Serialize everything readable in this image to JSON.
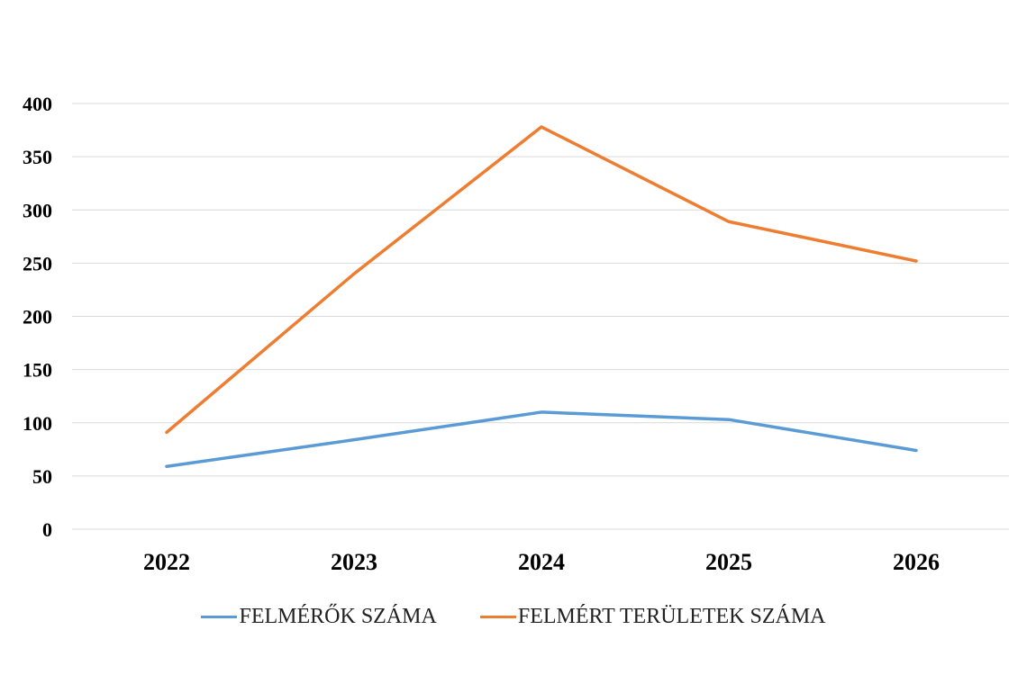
{
  "chart_data": {
    "type": "line",
    "categories": [
      "2022",
      "2023",
      "2024",
      "2025",
      "2026"
    ],
    "y_ticks": [
      "0",
      "50",
      "100",
      "150",
      "200",
      "250",
      "300",
      "350",
      "400"
    ],
    "ylim": [
      0,
      400
    ],
    "grid": true,
    "legend_position": "bottom",
    "series": [
      {
        "name": "FELMÉRŐK SZÁMA",
        "color": "#5b9bd5",
        "values": [
          59,
          84,
          110,
          103,
          74
        ]
      },
      {
        "name": "FELMÉRT TERÜLETEK SZÁMA",
        "color": "#ed7d31",
        "values": [
          91,
          240,
          378,
          289,
          252
        ]
      }
    ]
  }
}
